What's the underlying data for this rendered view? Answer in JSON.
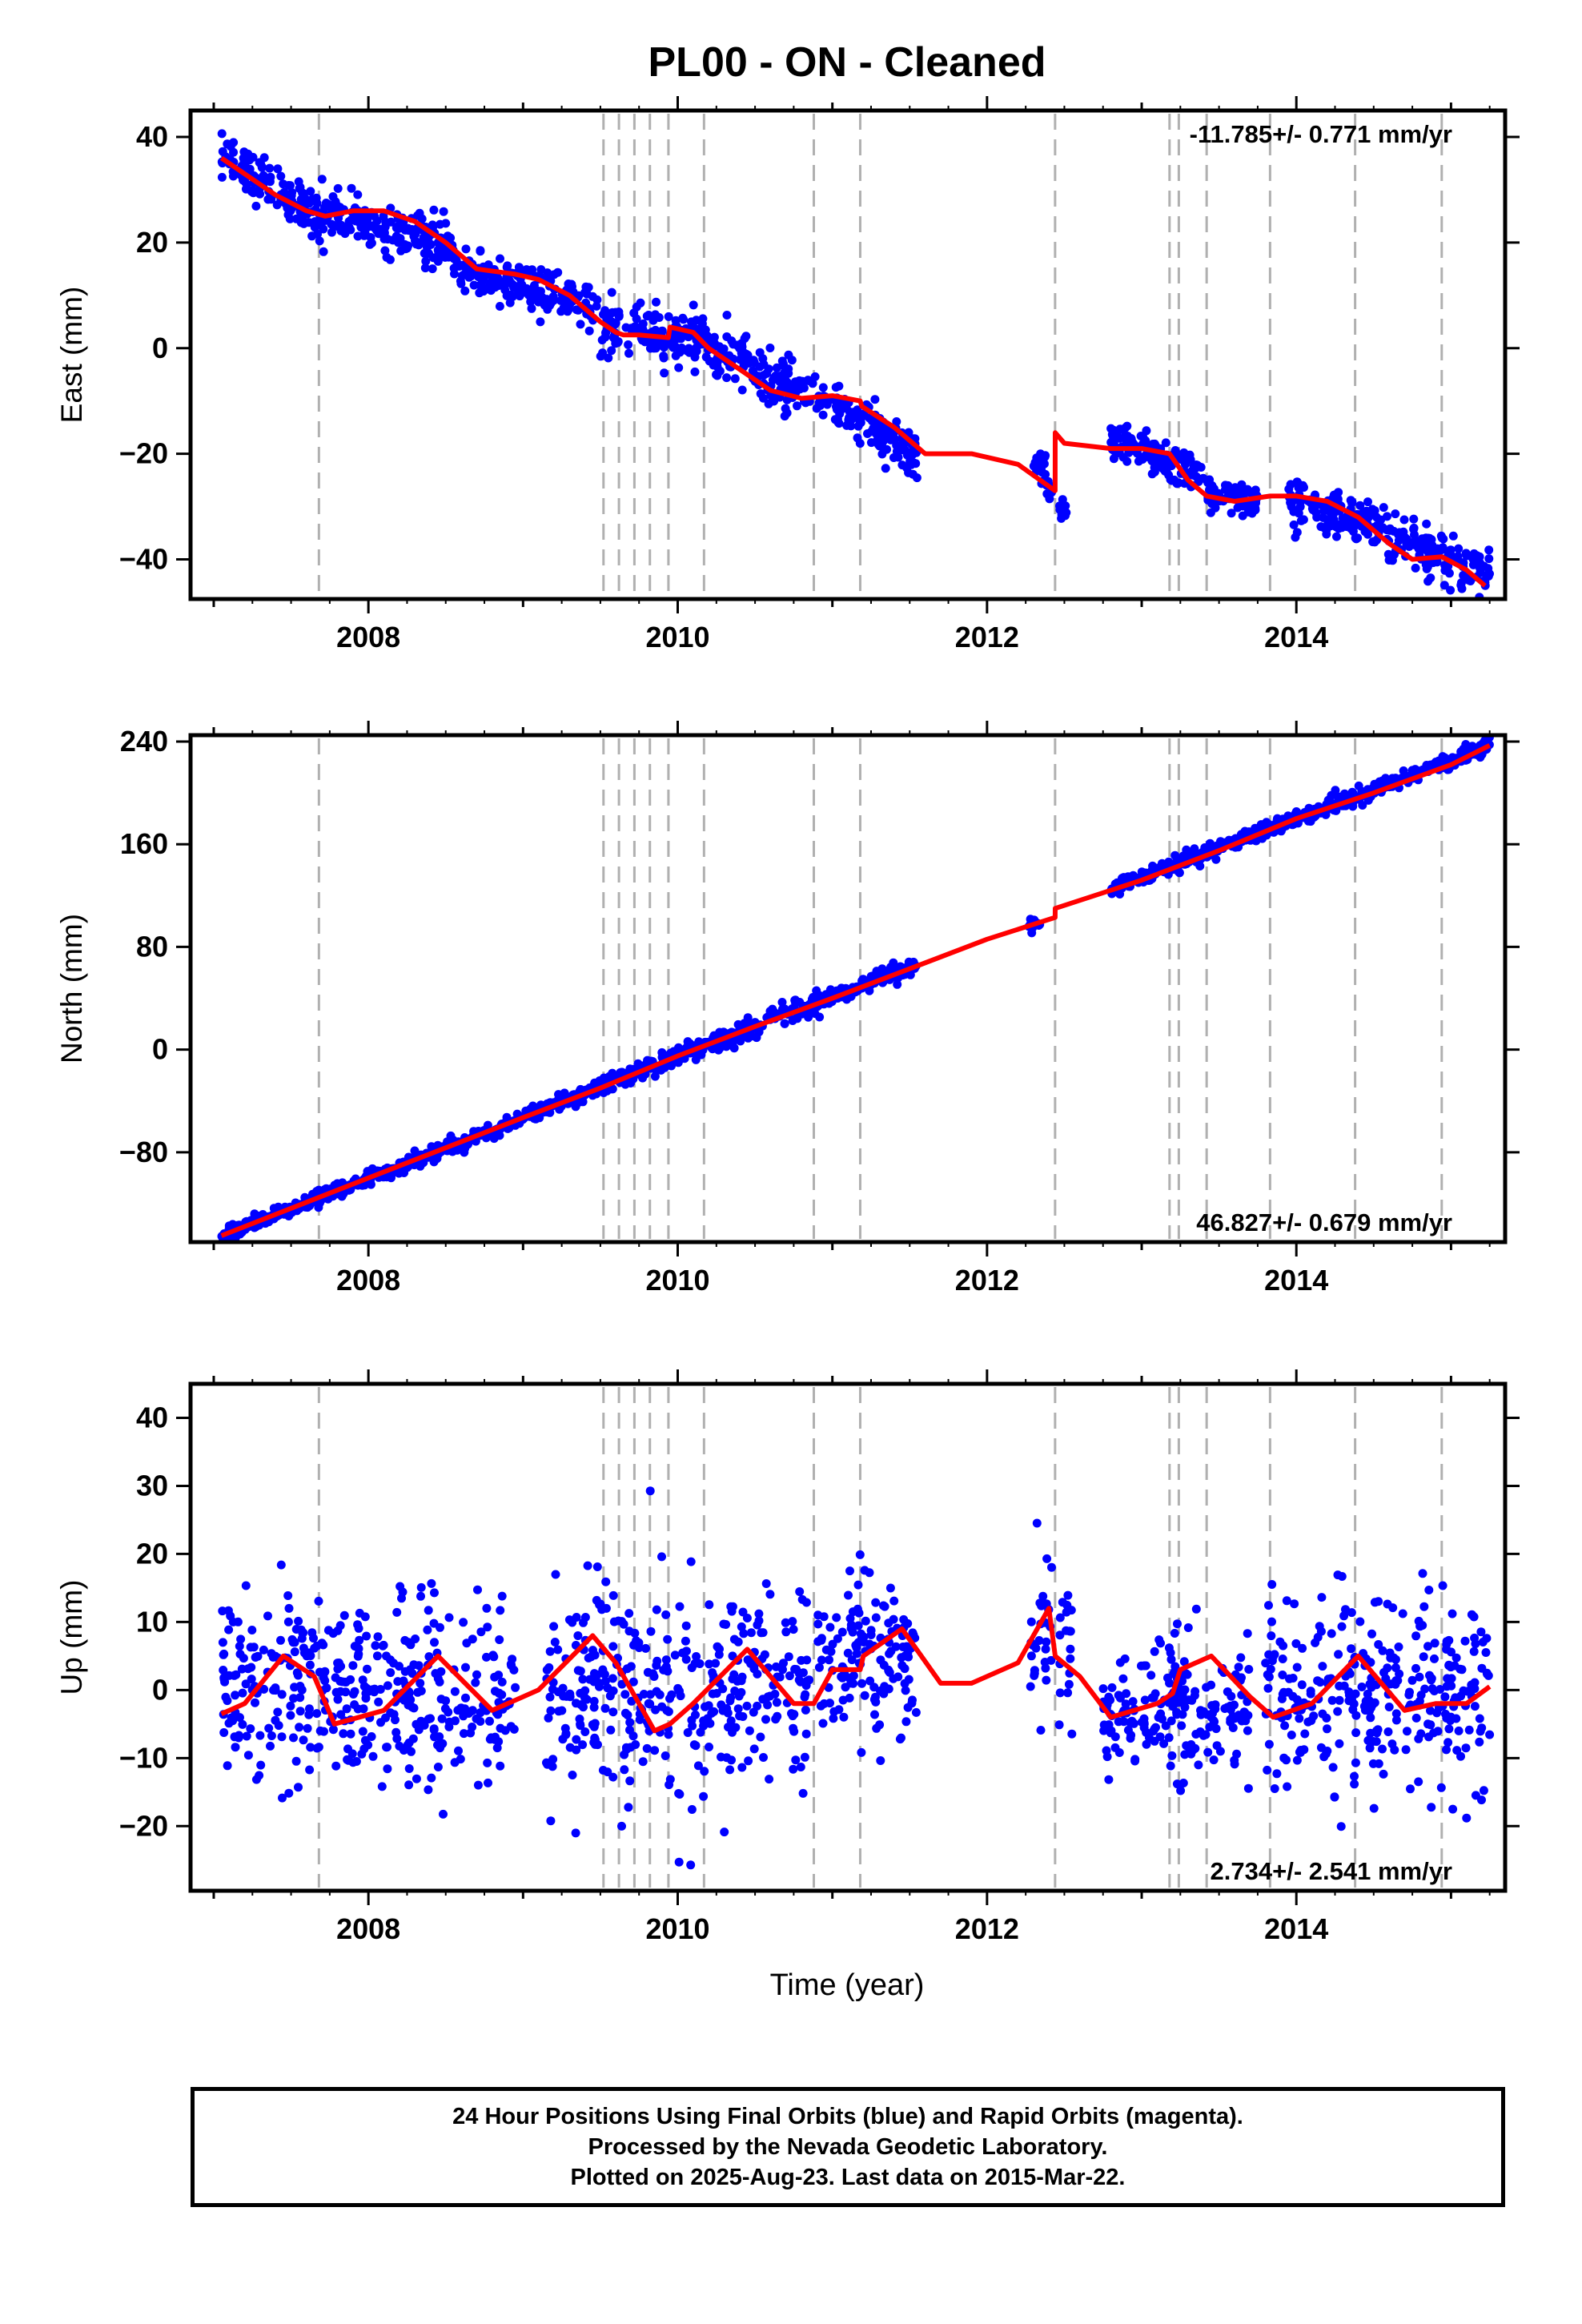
{
  "title": "PL00  - ON - Cleaned",
  "xlabel": "Time (year)",
  "colors": {
    "final_orbits": "#0000ff",
    "model": "#ff0000",
    "event_lines": "#b0b0b0",
    "axes": "#000000"
  },
  "footer": {
    "line1": "24 Hour Positions Using Final Orbits (blue) and Rapid Orbits (magenta).",
    "line2": "Processed by the Nevada Geodetic Laboratory.",
    "line3": "Plotted on 2025-Aug-23. Last data on 2015-Mar-22."
  },
  "chart_data": [
    {
      "type": "scatter",
      "component": "East",
      "ylabel": "East (mm)",
      "velocity_label": "-11.785+/- 0.771 mm/yr",
      "xlim": [
        2006.85,
        2015.35
      ],
      "ylim": [
        -47.5,
        45
      ],
      "x_ticks": [
        2008,
        2010,
        2012,
        2014
      ],
      "y_ticks": [
        40,
        20,
        0,
        -20,
        -40
      ],
      "y_tick_labels": [
        "40",
        "20",
        "0",
        "−20",
        "−40"
      ],
      "event_lines_year": [
        2007.68,
        2009.52,
        2009.62,
        2009.72,
        2009.82,
        2009.94,
        2010.17,
        2010.88,
        2011.18,
        2012.44,
        2013.18,
        2013.24,
        2013.42,
        2013.83,
        2014.38,
        2014.94
      ],
      "model": {
        "year": [
          2007.05,
          2007.2,
          2007.4,
          2007.6,
          2007.72,
          2007.9,
          2008.1,
          2008.3,
          2008.5,
          2008.7,
          2008.95,
          2009.1,
          2009.3,
          2009.5,
          2009.6,
          2009.65,
          2009.75,
          2009.94,
          2009.95,
          2010.1,
          2010.2,
          2010.4,
          2010.6,
          2010.8,
          2011.0,
          2011.18,
          2011.19,
          2011.4,
          2011.6,
          2011.9,
          2012.2,
          2012.44,
          2012.441,
          2012.5,
          2012.8,
          2013.0,
          2013.18,
          2013.3,
          2013.42,
          2013.6,
          2013.83,
          2014.0,
          2014.2,
          2014.4,
          2014.6,
          2014.75,
          2014.94,
          2015.1,
          2015.22
        ],
        "value": [
          36,
          33,
          29,
          26,
          25,
          26,
          26,
          24,
          20,
          15,
          14,
          13,
          10,
          5,
          3,
          2.5,
          2.5,
          2,
          4,
          3,
          0,
          -4,
          -8,
          -9.5,
          -9,
          -10,
          -11,
          -15,
          -20,
          -20,
          -22,
          -27,
          -16,
          -18,
          -19,
          -19,
          -20,
          -25,
          -28,
          -29,
          -28,
          -28,
          -29,
          -32,
          -37,
          -40,
          -39.5,
          -42,
          -45
        ]
      },
      "observations": [
        {
          "label": "Final Orbits (blue)",
          "segments": [
            {
              "x": [
                2007.05,
                2007.7
              ],
              "y": [
                36,
                25
              ],
              "spread": 2.2
            },
            {
              "x": [
                2007.7,
                2008.55
              ],
              "y": [
                26,
                19
              ],
              "spread": 2.2
            },
            {
              "x": [
                2008.55,
                2009.48
              ],
              "y": [
                15,
                8
              ],
              "spread": 2.0
            },
            {
              "x": [
                2009.5,
                2010.2
              ],
              "y": [
                3,
                2
              ],
              "spread": 2.5
            },
            {
              "x": [
                2010.2,
                2010.85
              ],
              "y": [
                0,
                -9
              ],
              "spread": 2.5
            },
            {
              "x": [
                2010.85,
                2011.55
              ],
              "y": [
                -8,
                -20
              ],
              "spread": 2.2
            },
            {
              "x": [
                2012.3,
                2012.42
              ],
              "y": [
                -22,
                -25
              ],
              "spread": 1.5
            },
            {
              "x": [
                2012.46,
                2012.52
              ],
              "y": [
                -30,
                -31
              ],
              "spread": 1.0
            },
            {
              "x": [
                2012.8,
                2013.4
              ],
              "y": [
                -17,
                -25
              ],
              "spread": 2.0
            },
            {
              "x": [
                2013.4,
                2013.75
              ],
              "y": [
                -28,
                -29
              ],
              "spread": 1.5
            },
            {
              "x": [
                2013.95,
                2015.25
              ],
              "y": [
                -28,
                -43
              ],
              "spread": 2.2
            }
          ]
        }
      ]
    },
    {
      "type": "scatter",
      "component": "North",
      "ylabel": "North (mm)",
      "velocity_label": "46.827+/- 0.679 mm/yr",
      "xlim": [
        2006.85,
        2015.35
      ],
      "ylim": [
        -150,
        245
      ],
      "x_ticks": [
        2008,
        2010,
        2012,
        2014
      ],
      "y_ticks": [
        240,
        160,
        80,
        0,
        -80
      ],
      "y_tick_labels": [
        "240",
        "160",
        "80",
        "0",
        "−80"
      ],
      "event_lines_year": [
        2007.68,
        2009.52,
        2009.62,
        2009.72,
        2009.82,
        2009.94,
        2010.17,
        2010.88,
        2011.18,
        2012.44,
        2013.18,
        2013.24,
        2013.42,
        2013.83,
        2014.38,
        2014.94
      ],
      "model": {
        "year": [
          2007.05,
          2008.0,
          2009.0,
          2009.5,
          2010.0,
          2010.5,
          2011.0,
          2011.5,
          2012.0,
          2012.44,
          2012.441,
          2013.0,
          2013.5,
          2014.0,
          2014.5,
          2015.0,
          2015.25
        ],
        "value": [
          -145,
          -100,
          -53,
          -30,
          -5,
          18,
          40,
          63,
          86,
          103,
          110,
          132,
          155,
          180,
          200,
          222,
          237
        ]
      },
      "observations": [
        {
          "label": "Final Orbits (blue)",
          "segments": [
            {
              "x": [
                2007.05,
                2009.5
              ],
              "y": [
                -145,
                -30
              ],
              "spread": 3
            },
            {
              "x": [
                2009.5,
                2011.55
              ],
              "y": [
                -28,
                66
              ],
              "spread": 3.5
            },
            {
              "x": [
                2012.27,
                2012.35
              ],
              "y": [
                97,
                100
              ],
              "spread": 2
            },
            {
              "x": [
                2012.8,
                2015.25
              ],
              "y": [
                125,
                237
              ],
              "spread": 3
            }
          ]
        }
      ]
    },
    {
      "type": "scatter",
      "component": "Up",
      "ylabel": "Up (mm)",
      "velocity_label": "2.734+/- 2.541 mm/yr",
      "xlim": [
        2006.85,
        2015.35
      ],
      "ylim": [
        -29.5,
        45
      ],
      "x_ticks": [
        2008,
        2010,
        2012,
        2014
      ],
      "y_ticks": [
        40,
        30,
        20,
        10,
        0,
        -10,
        -20
      ],
      "y_tick_labels": [
        "40",
        "30",
        "20",
        "10",
        "0",
        "−10",
        "−20"
      ],
      "event_lines_year": [
        2007.68,
        2009.52,
        2009.62,
        2009.72,
        2009.82,
        2009.94,
        2010.17,
        2010.88,
        2011.18,
        2012.44,
        2013.18,
        2013.24,
        2013.42,
        2013.83,
        2014.38,
        2014.94
      ],
      "model": {
        "year": [
          2007.05,
          2007.2,
          2007.45,
          2007.65,
          2007.78,
          2008.1,
          2008.45,
          2008.8,
          2009.1,
          2009.45,
          2009.6,
          2009.75,
          2009.85,
          2009.95,
          2010.1,
          2010.45,
          2010.75,
          2010.88,
          2011.0,
          2011.18,
          2011.2,
          2011.45,
          2011.7,
          2011.9,
          2012.2,
          2012.4,
          2012.441,
          2012.6,
          2012.8,
          2013.1,
          2013.2,
          2013.25,
          2013.45,
          2013.7,
          2013.85,
          2014.1,
          2014.4,
          2014.7,
          2014.9,
          2015.1,
          2015.25
        ],
        "value": [
          -3.5,
          -2,
          5,
          2,
          -5,
          -3,
          5,
          -3,
          0,
          8,
          4,
          -2,
          -6,
          -5,
          -2,
          6,
          -2,
          -2,
          3,
          3,
          5,
          9,
          1,
          1,
          4,
          12,
          5,
          2,
          -4,
          -2,
          -0.5,
          3,
          5,
          -1,
          -4,
          -2,
          5,
          -3,
          -2,
          -2,
          0.5
        ]
      },
      "observations": [
        {
          "label": "Final Orbits (blue)",
          "segments": [
            {
              "x": [
                2007.05,
                2007.7
              ],
              "y": [
                1,
                1
              ],
              "spread": 7
            },
            {
              "x": [
                2007.7,
                2008.95
              ],
              "y": [
                -1,
                -1
              ],
              "spread": 7
            },
            {
              "x": [
                2009.15,
                2010.2
              ],
              "y": [
                -1,
                -1
              ],
              "spread": 8
            },
            {
              "x": [
                2010.2,
                2010.85
              ],
              "y": [
                1,
                1
              ],
              "spread": 7
            },
            {
              "x": [
                2010.9,
                2011.55
              ],
              "y": [
                5,
                5
              ],
              "spread": 6
            },
            {
              "x": [
                2012.28,
                2012.42
              ],
              "y": [
                8,
                8
              ],
              "spread": 5
            },
            {
              "x": [
                2012.46,
                2012.55
              ],
              "y": [
                5,
                5
              ],
              "spread": 8
            },
            {
              "x": [
                2012.75,
                2013.7
              ],
              "y": [
                -3,
                -3
              ],
              "spread": 5
            },
            {
              "x": [
                2013.8,
                2015.25
              ],
              "y": [
                -1,
                -1
              ],
              "spread": 7
            }
          ]
        }
      ]
    }
  ]
}
